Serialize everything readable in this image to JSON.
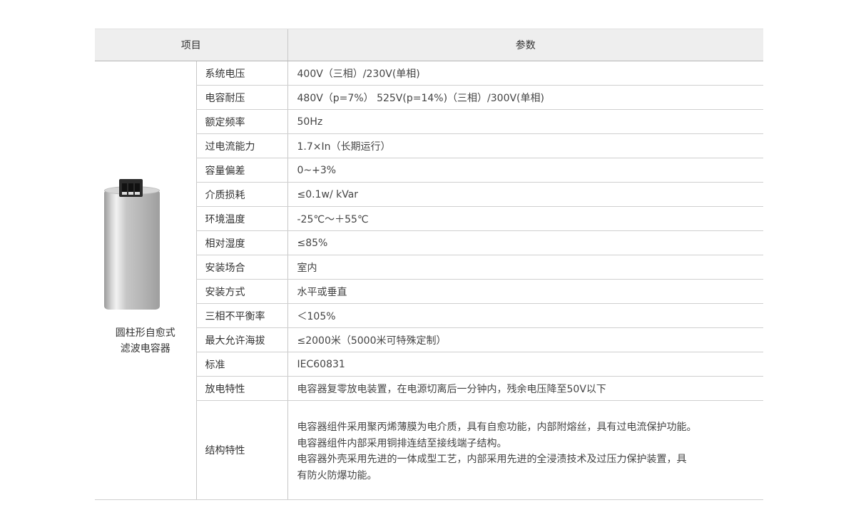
{
  "header": {
    "item": "项目",
    "params": "参数"
  },
  "product": {
    "name_line1": "圆柱形自愈式",
    "name_line2": "滤波电容器"
  },
  "rows": [
    {
      "label": "系统电压",
      "value": "400V（三相）/230V(单相)"
    },
    {
      "label": "电容耐压",
      "value": "480V（p=7%） 525V(p=14%)（三相）/300V(单相)"
    },
    {
      "label": "额定频率",
      "value": "50Hz"
    },
    {
      "label": "过电流能力",
      "value": "1.7×In（长期运行）"
    },
    {
      "label": "容量偏差",
      "value": "0~+3%"
    },
    {
      "label": "介质损耗",
      "value": "≤0.1w/ kVar"
    },
    {
      "label": "环境温度",
      "value": "-25℃～＋55℃"
    },
    {
      "label": "相对湿度",
      "value": "≤85%"
    },
    {
      "label": "安装场合",
      "value": "室内"
    },
    {
      "label": "安装方式",
      "value": "水平或垂直"
    },
    {
      "label": "三相不平衡率",
      "value": "＜105%"
    },
    {
      "label": "最大允许海拔",
      "value": "≤2000米（5000米可特殊定制）"
    },
    {
      "label": "标准",
      "value": "IEC60831"
    },
    {
      "label": "放电特性",
      "value": "电容器复零放电装置，在电源切离后一分钟内，残余电压降至50V以下"
    }
  ],
  "structure": {
    "label": "结构特性",
    "lines": [
      "电容器组件采用聚丙烯薄膜为电介质，具有自愈功能，内部附熔丝，具有过电流保护功能。",
      "电容器组件内部采用铜排连结至接线端子结构。",
      "电容器外壳采用先进的一体成型工艺，内部采用先进的全浸渍技术及过压力保护装置，具",
      "有防火防爆功能。"
    ]
  }
}
